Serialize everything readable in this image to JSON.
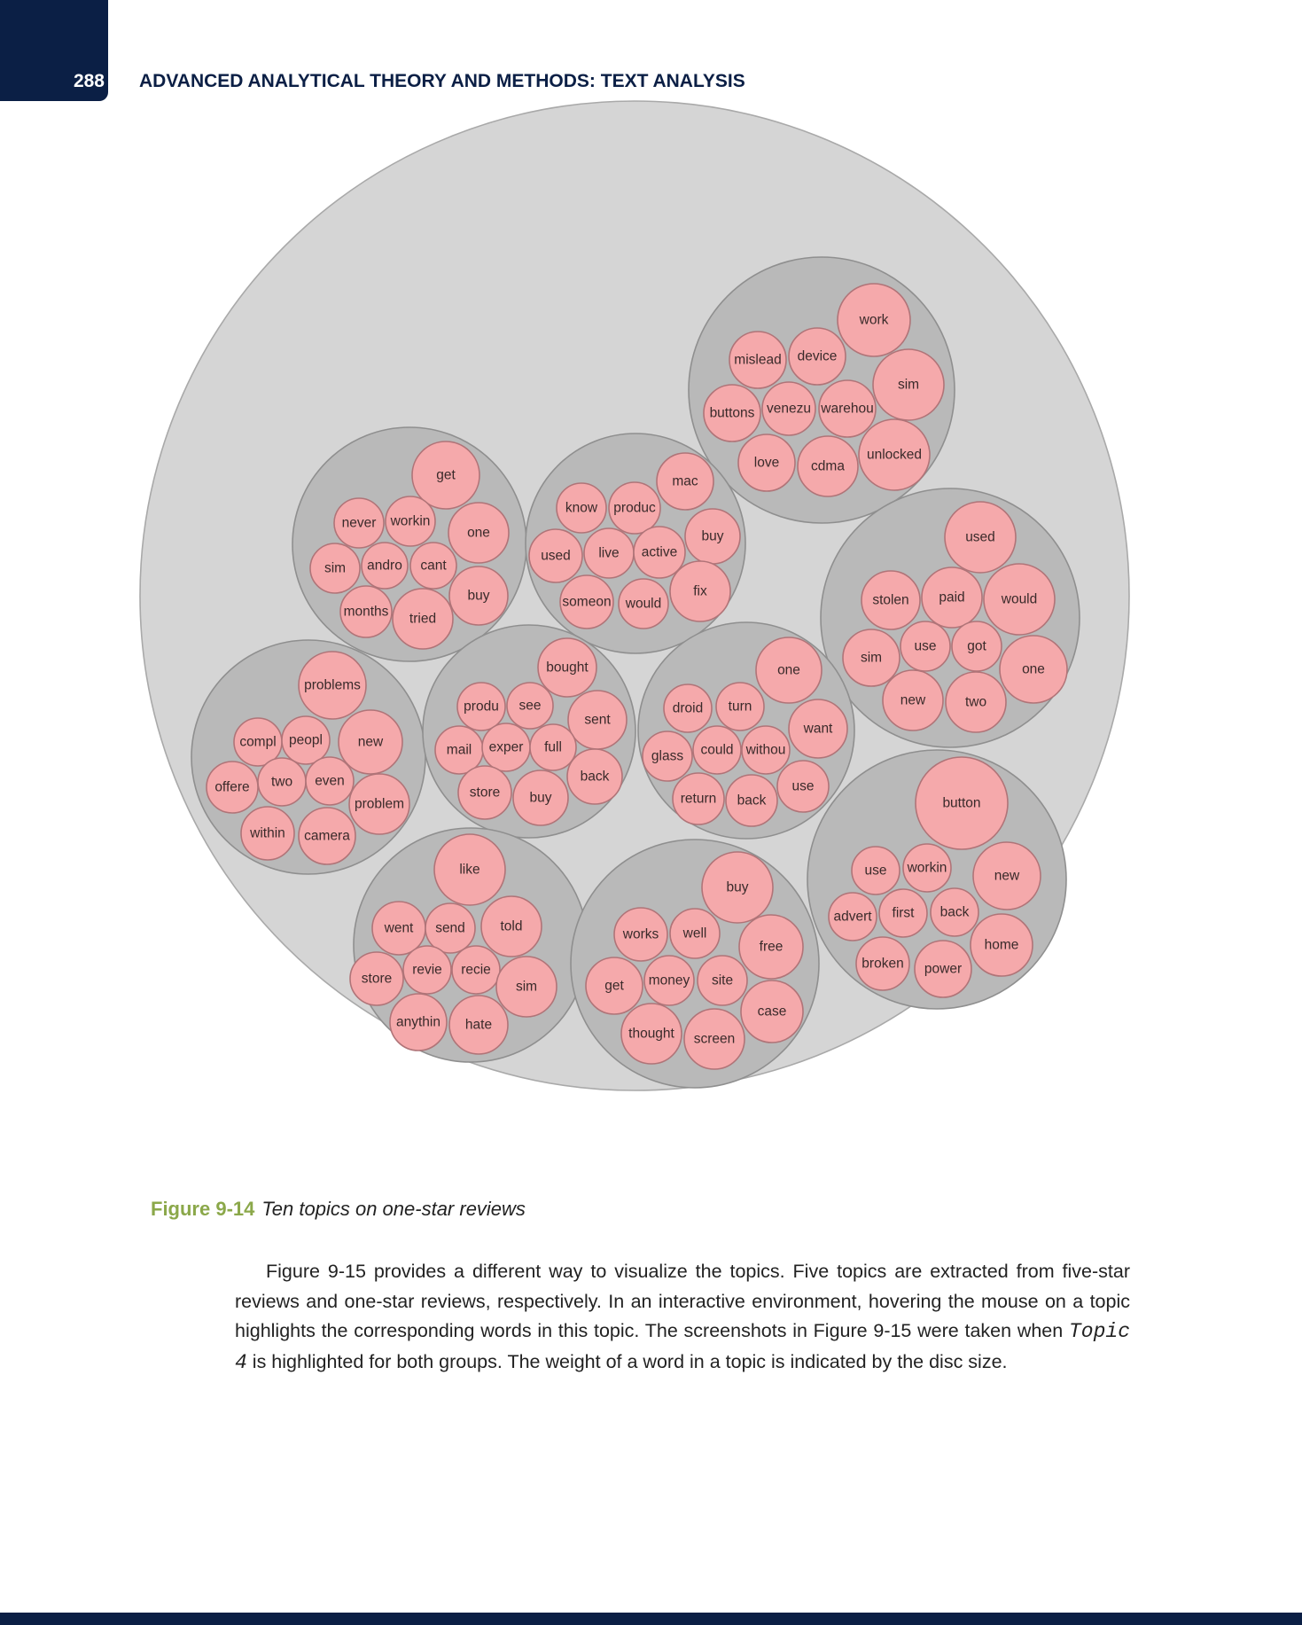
{
  "header": {
    "page_number": "288",
    "running_title": "ADVANCED ANALYTICAL THEORY AND METHODS: TEXT ANALYSIS"
  },
  "colors": {
    "outer_circle": "#d5d5d5",
    "topic_circle": "#b9b9b9",
    "word_circle": "#f5a9ab",
    "navy": "#0b1f45",
    "caption_green": "#8ba84a"
  },
  "figure": {
    "label": "Figure 9-14",
    "caption": "Ten topics on one-star reviews"
  },
  "chart_data": {
    "type": "packed-bubble",
    "topics": [
      {
        "words": [
          "work",
          "mislead",
          "device",
          "sim",
          "buttons",
          "venezu",
          "warehou",
          "love",
          "cdma",
          "unlocked"
        ]
      },
      {
        "words": [
          "get",
          "never",
          "workin",
          "one",
          "sim",
          "andro",
          "cant",
          "buy",
          "months",
          "tried"
        ]
      },
      {
        "words": [
          "mac",
          "know",
          "produc",
          "buy",
          "used",
          "live",
          "active",
          "someon",
          "would",
          "fix"
        ]
      },
      {
        "words": [
          "used",
          "stolen",
          "paid",
          "would",
          "sim",
          "use",
          "got",
          "one",
          "new",
          "two"
        ]
      },
      {
        "words": [
          "problems",
          "compl",
          "peopl",
          "new",
          "offere",
          "two",
          "even",
          "problem",
          "within",
          "camera"
        ]
      },
      {
        "words": [
          "bought",
          "produ",
          "see",
          "sent",
          "mail",
          "exper",
          "full",
          "back",
          "store",
          "buy"
        ]
      },
      {
        "words": [
          "one",
          "droid",
          "turn",
          "want",
          "glass",
          "could",
          "withou",
          "use",
          "return",
          "back"
        ]
      },
      {
        "words": [
          "button",
          "use",
          "workin",
          "new",
          "advert",
          "first",
          "back",
          "home",
          "broken",
          "power"
        ]
      },
      {
        "words": [
          "like",
          "went",
          "send",
          "told",
          "store",
          "revie",
          "recie",
          "sim",
          "anythin",
          "hate"
        ]
      },
      {
        "words": [
          "buy",
          "works",
          "well",
          "free",
          "get",
          "money",
          "site",
          "case",
          "thought",
          "screen"
        ]
      }
    ]
  },
  "body_text": {
    "before_code": "Figure 9-15 provides a different way to visualize the topics. Five topics are extracted from five-star reviews and one-star reviews, respectively. In an interactive environment, hovering the mouse on a topic highlights the corresponding words in this topic. The screenshots in Figure 9-15 were taken when ",
    "code": "Topic 4",
    "after_code": " is highlighted for both groups. The weight of a word in a topic is indicated by the disc size."
  }
}
